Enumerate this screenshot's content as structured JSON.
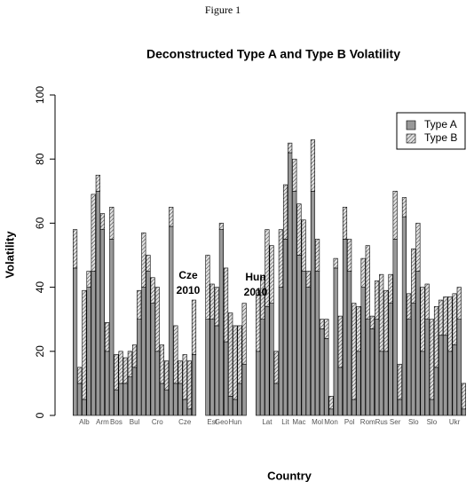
{
  "header": "Figure 1",
  "chart_data": {
    "type": "stacked-bar",
    "title": "Deconstructed Type A and Type B Volatility",
    "x_label": "Country",
    "y_label": "Volatility",
    "ylim": [
      0,
      100
    ],
    "yticks": [
      0,
      20,
      40,
      60,
      80,
      100
    ],
    "legend": "top-right",
    "annotations": [
      [
        "Cze",
        "2010"
      ],
      [
        "Hun",
        "2010"
      ]
    ],
    "categories": [
      null,
      null,
      "Alb",
      null,
      null,
      null,
      "Arm",
      null,
      null,
      "Bos",
      null,
      null,
      null,
      "Bul",
      null,
      null,
      null,
      null,
      "Cro",
      null,
      null,
      null,
      null,
      null,
      "Cze",
      null,
      null,
      null,
      null,
      null,
      "Est",
      null,
      "Geo",
      null,
      null,
      "Hun",
      null,
      null,
      null,
      null,
      null,
      null,
      "Lat",
      null,
      null,
      null,
      "Lit",
      null,
      null,
      "Mac",
      null,
      null,
      null,
      "Mol",
      null,
      null,
      "Mon",
      null,
      null,
      null,
      "Pol",
      null,
      null,
      null,
      "Rom",
      null,
      null,
      "Rus",
      null,
      null,
      "Ser",
      null,
      null,
      null,
      "Slo",
      null,
      null,
      null,
      "Slo",
      null,
      null,
      null,
      null,
      "Ukr",
      null,
      null
    ],
    "series": [
      {
        "name": "Type A",
        "color": "#bdbdbd",
        "values": [
          46,
          10,
          5,
          40,
          45,
          70,
          58,
          20,
          55,
          8,
          10,
          10,
          12,
          15,
          30,
          40,
          45,
          35,
          20,
          10,
          8,
          59,
          10,
          10,
          5,
          2,
          19,
          null,
          null,
          30,
          30,
          28,
          58,
          23,
          6,
          5,
          10,
          16,
          null,
          null,
          20,
          30,
          34,
          35,
          10,
          40,
          55,
          82,
          70,
          50,
          45,
          40,
          70,
          45,
          27,
          24,
          2,
          46,
          15,
          55,
          45,
          5,
          20,
          40,
          30,
          27,
          30,
          20,
          20,
          35,
          55,
          5,
          62,
          30,
          35,
          45,
          20,
          30,
          5,
          15,
          25,
          25,
          20,
          22,
          30,
          2
        ]
      },
      {
        "name": "Type B",
        "color": "#e0e0e0",
        "values": [
          12,
          5,
          34,
          5,
          24,
          5,
          5,
          9,
          10,
          11,
          10,
          8,
          8,
          7,
          9,
          17,
          5,
          8,
          20,
          12,
          9,
          6,
          18,
          7,
          14,
          15,
          17,
          null,
          null,
          20,
          11,
          12,
          2,
          23,
          26,
          23,
          18,
          19,
          null,
          null,
          19,
          13,
          24,
          18,
          10,
          18,
          17,
          3,
          10,
          16,
          16,
          5,
          16,
          10,
          3,
          6,
          4,
          3,
          16,
          10,
          10,
          30,
          14,
          9,
          23,
          4,
          12,
          24,
          19,
          9,
          15,
          11,
          6,
          8,
          17,
          15,
          20,
          11,
          25,
          19,
          11,
          12,
          17,
          16,
          10,
          8
        ]
      }
    ]
  }
}
